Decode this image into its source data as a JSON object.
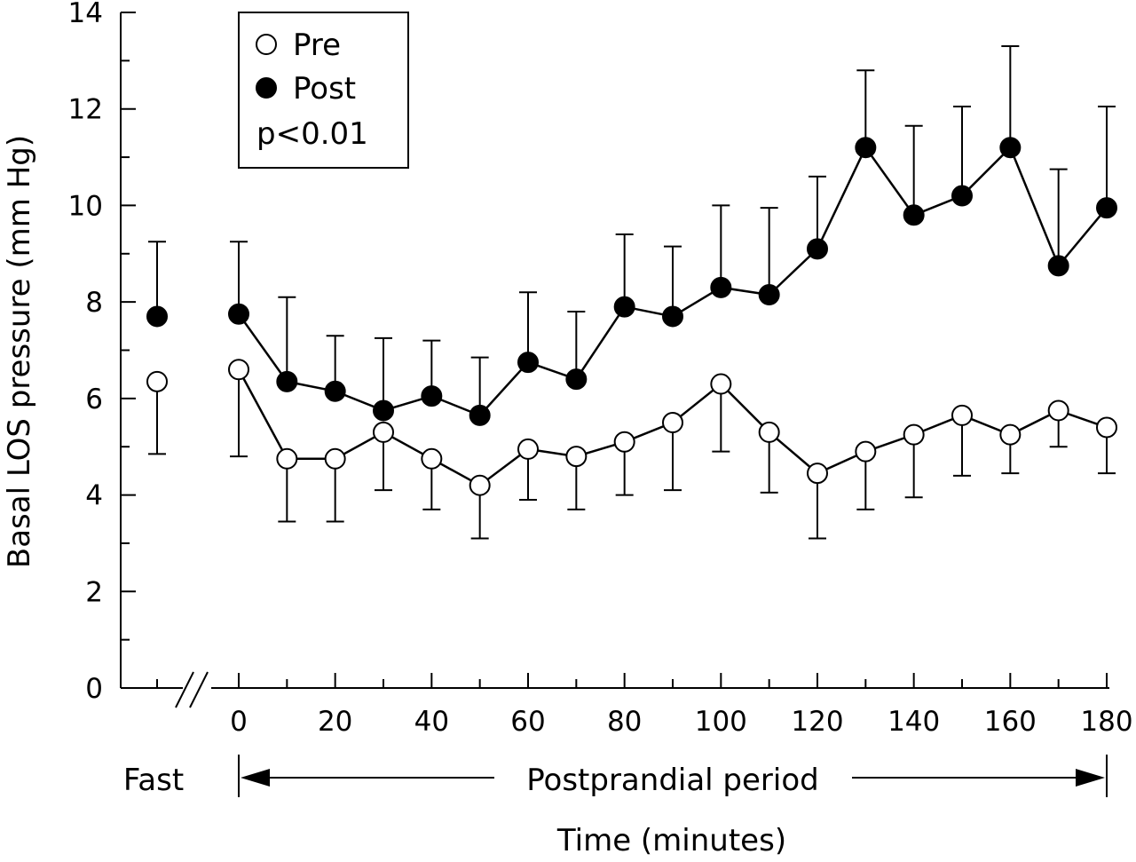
{
  "chart_data": {
    "type": "line",
    "ylabel": "Basal LOS pressure (mm Hg)",
    "xlabel": "Time (minutes)",
    "ylim": [
      0,
      14
    ],
    "y_ticks": [
      "0",
      "2",
      "4",
      "6",
      "8",
      "10",
      "12",
      "14"
    ],
    "x_ticks": [
      "0",
      "20",
      "40",
      "60",
      "80",
      "100",
      "120",
      "140",
      "160",
      "180"
    ],
    "xlim": [
      0,
      180
    ],
    "fast_label": "Fast",
    "period_label": "Postprandial period",
    "legend": {
      "entries": [
        "Pre",
        "Post"
      ],
      "note": "p<0.01",
      "placement": "top-left"
    },
    "grid": false,
    "series": [
      {
        "name": "Pre",
        "marker": "open-circle",
        "fast": {
          "value": 6.35,
          "error": 1.5
        },
        "x": [
          0,
          10,
          20,
          30,
          40,
          50,
          60,
          70,
          80,
          90,
          100,
          110,
          120,
          130,
          140,
          150,
          160,
          170,
          180
        ],
        "values": [
          6.6,
          4.75,
          4.75,
          5.3,
          4.75,
          4.2,
          4.95,
          4.8,
          5.1,
          5.5,
          6.3,
          5.3,
          4.45,
          4.9,
          5.25,
          5.65,
          5.25,
          5.75,
          5.4
        ],
        "errors": [
          1.8,
          1.3,
          1.3,
          1.2,
          1.05,
          1.1,
          1.05,
          1.1,
          1.1,
          1.4,
          1.4,
          1.25,
          1.35,
          1.2,
          1.3,
          1.25,
          0.8,
          0.75,
          0.95
        ],
        "error_direction": "down"
      },
      {
        "name": "Post",
        "marker": "filled-circle",
        "fast": {
          "value": 7.7,
          "error": 1.55
        },
        "x": [
          0,
          10,
          20,
          30,
          40,
          50,
          60,
          70,
          80,
          90,
          100,
          110,
          120,
          130,
          140,
          150,
          160,
          170,
          180
        ],
        "values": [
          7.75,
          6.35,
          6.15,
          5.75,
          6.05,
          5.65,
          6.75,
          6.4,
          7.9,
          7.7,
          8.3,
          8.15,
          9.1,
          11.2,
          9.8,
          10.2,
          11.2,
          8.75,
          9.95
        ],
        "errors": [
          1.5,
          1.75,
          1.15,
          1.5,
          1.15,
          1.2,
          1.45,
          1.4,
          1.5,
          1.45,
          1.7,
          1.8,
          1.5,
          1.6,
          1.85,
          1.85,
          2.1,
          2.0,
          2.1
        ],
        "error_direction": "up"
      }
    ]
  }
}
